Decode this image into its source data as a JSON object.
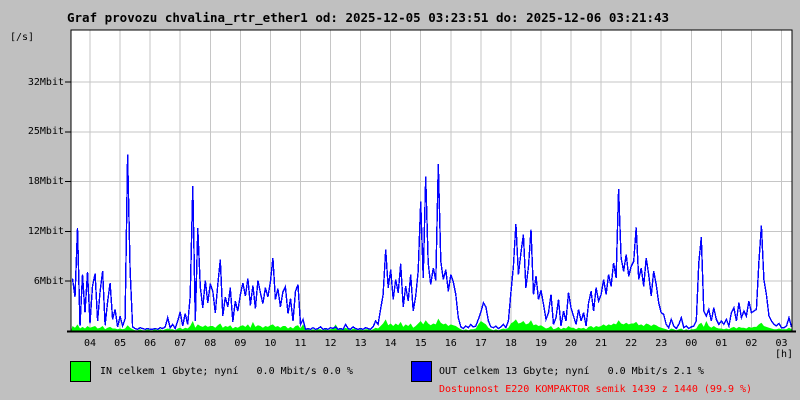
{
  "title": "Graf provozu chvalina_rtr_ether1 od: 2025-12-05 03:23:51 do: 2025-12-06 03:21:43",
  "y_axis": {
    "unit_label": "[/s]",
    "tick_values": [
      6,
      12,
      18,
      25,
      32
    ],
    "tick_labels": [
      "6Mbit",
      "12Mbit",
      "18Mbit",
      "25Mbit",
      "32Mbit"
    ]
  },
  "x_axis": {
    "unit_label": "[h]",
    "hour_labels": [
      "04",
      "05",
      "06",
      "07",
      "08",
      "09",
      "10",
      "11",
      "12",
      "13",
      "14",
      "15",
      "16",
      "17",
      "18",
      "19",
      "20",
      "21",
      "22",
      "23",
      "00",
      "01",
      "02",
      "03"
    ],
    "first_hour_offset_minutes": 38,
    "total_minutes": 1439
  },
  "legend": {
    "in": {
      "color": "#00ff00",
      "label": "IN celkem 1 Gbyte; nyní   0.0 Mbit/s 0.0 %"
    },
    "out": {
      "color": "#0000ff",
      "label": "OUT celkem 13 Gbyte; nyní   0.0 Mbit/s 2.1 %"
    },
    "availability": {
      "color": "#ff0000",
      "label": "Dostupnost E220 KOMPAKTOR semik 1439 z 1440 (99.9 %)"
    }
  },
  "colors": {
    "background": "#c0c0c0",
    "plot_background": "#ffffff",
    "grid": "#c6c6c6",
    "border": "#000000",
    "in_series": "#00ff00",
    "out_series": "#0000ff"
  },
  "chart_data": {
    "type": "line",
    "title": "Graf provozu chvalina_rtr_ether1",
    "time_start": "2025-12-05 03:23:51",
    "time_end": "2025-12-06 03:21:43",
    "interval_minutes": 5,
    "units": "Mbit/s",
    "ylabel": "[/s]",
    "xlabel": "[h]",
    "ylim": [
      0,
      38
    ],
    "grid": true,
    "legend_position": "bottom",
    "y_tick_values": [
      6,
      12,
      18,
      25,
      32
    ],
    "series": [
      {
        "name": "IN",
        "style": "area",
        "color": "#00ff00",
        "values": [
          0.6,
          0.4,
          0.8,
          0.3,
          0.5,
          0.3,
          0.6,
          0.4,
          0.5,
          0.6,
          0.3,
          0.4,
          0.6,
          0.2,
          0.4,
          0.5,
          0.3,
          0.3,
          0.2,
          0.3,
          0.2,
          0.3,
          0.7,
          0.4,
          0.2,
          0.1,
          0.1,
          0.2,
          0.1,
          0.1,
          0.2,
          0.1,
          0.1,
          0.2,
          0.1,
          0.2,
          0.1,
          0.2,
          0.3,
          0.2,
          0.2,
          0.1,
          0.3,
          0.4,
          0.2,
          0.4,
          0.3,
          0.6,
          1.2,
          0.4,
          0.8,
          0.6,
          0.5,
          0.7,
          0.5,
          0.6,
          0.6,
          0.4,
          0.7,
          0.9,
          0.4,
          0.6,
          0.5,
          0.7,
          0.3,
          0.5,
          0.4,
          0.6,
          0.7,
          0.5,
          0.8,
          0.4,
          1.1,
          0.5,
          0.7,
          0.6,
          0.4,
          0.6,
          0.5,
          0.7,
          0.8,
          0.5,
          0.6,
          0.4,
          0.6,
          0.6,
          0.3,
          0.5,
          0.3,
          0.6,
          0.7,
          0.3,
          0.8,
          0.2,
          0.2,
          0.1,
          0.2,
          0.1,
          0.2,
          0.2,
          0.1,
          0.2,
          0.1,
          0.2,
          0.3,
          0.8,
          0.3,
          0.2,
          0.2,
          0.4,
          0.2,
          0.1,
          0.3,
          0.2,
          0.1,
          0.2,
          0.1,
          0.2,
          0.2,
          0.1,
          0.2,
          0.4,
          0.3,
          0.6,
          0.9,
          1.4,
          0.7,
          0.9,
          0.6,
          0.9,
          0.7,
          1.1,
          0.5,
          0.8,
          0.6,
          0.9,
          0.4,
          0.6,
          0.9,
          1.2,
          0.8,
          1.3,
          0.9,
          0.7,
          0.9,
          0.8,
          1.5,
          1.0,
          0.8,
          0.9,
          0.6,
          0.8,
          0.7,
          0.6,
          0.4,
          0.2,
          0.1,
          0.2,
          0.1,
          0.2,
          0.2,
          0.3,
          0.8,
          1.2,
          1.0,
          0.8,
          0.4,
          0.2,
          0.1,
          0.2,
          0.1,
          0.2,
          0.3,
          0.2,
          0.4,
          0.9,
          1.1,
          1.4,
          0.9,
          1.0,
          1.2,
          0.8,
          0.9,
          1.3,
          0.7,
          0.8,
          0.6,
          0.7,
          0.5,
          0.3,
          0.4,
          0.6,
          0.2,
          0.3,
          0.5,
          0.2,
          0.4,
          0.3,
          0.6,
          0.4,
          0.4,
          0.2,
          0.4,
          0.3,
          0.4,
          0.2,
          0.5,
          0.6,
          0.4,
          0.6,
          0.5,
          0.6,
          0.8,
          0.6,
          0.8,
          0.7,
          0.9,
          0.8,
          1.3,
          0.9,
          0.8,
          1.0,
          0.8,
          0.9,
          0.9,
          1.1,
          0.7,
          0.8,
          0.6,
          0.9,
          0.8,
          0.6,
          0.8,
          0.7,
          0.5,
          0.4,
          0.3,
          0.2,
          0.1,
          0.3,
          0.2,
          0.1,
          0.2,
          0.3,
          0.1,
          0.2,
          0.1,
          0.2,
          0.2,
          0.3,
          0.8,
          1.0,
          0.5,
          1.2,
          0.6,
          0.4,
          0.6,
          0.4,
          0.3,
          0.3,
          0.2,
          0.3,
          0.2,
          0.4,
          0.5,
          0.3,
          0.5,
          0.4,
          0.4,
          0.3,
          0.5,
          0.4,
          0.5,
          0.5,
          0.8,
          1.0,
          0.6,
          0.5,
          0.4,
          0.3,
          0.2,
          0.2,
          0.3,
          0.2,
          0.2,
          0.2,
          0.4,
          0.2
        ]
      },
      {
        "name": "OUT",
        "style": "line",
        "color": "#0000ff",
        "values": [
          6.3,
          4.1,
          12.4,
          0.6,
          6.8,
          2.2,
          7.1,
          0.9,
          5.4,
          6.9,
          1.2,
          4.8,
          7.2,
          0.7,
          3.5,
          5.8,
          1.4,
          2.6,
          0.5,
          1.8,
          0.6,
          1.5,
          21.8,
          7.4,
          0.5,
          0.3,
          0.2,
          0.4,
          0.3,
          0.2,
          0.3,
          0.2,
          0.2,
          0.3,
          0.2,
          0.4,
          0.3,
          0.5,
          1.6,
          0.4,
          0.8,
          0.3,
          1.2,
          2.3,
          0.6,
          2.1,
          0.8,
          4.2,
          17.5,
          1.2,
          12.4,
          5.3,
          2.8,
          6.1,
          3.4,
          5.7,
          4.8,
          2.2,
          5.6,
          8.6,
          1.8,
          4.1,
          2.9,
          5.2,
          1.1,
          3.6,
          2.4,
          4.4,
          5.8,
          4.2,
          6.3,
          3.1,
          5.5,
          2.7,
          6.1,
          4.6,
          3.3,
          5.2,
          4.1,
          5.9,
          8.8,
          3.8,
          5.1,
          2.9,
          4.7,
          5.3,
          2.1,
          3.9,
          1.2,
          4.8,
          5.6,
          0.8,
          1.4,
          0.2,
          0.3,
          0.2,
          0.4,
          0.2,
          0.3,
          0.5,
          0.2,
          0.3,
          0.2,
          0.4,
          0.3,
          0.5,
          0.2,
          0.3,
          0.2,
          0.8,
          0.3,
          0.2,
          0.5,
          0.3,
          0.2,
          0.3,
          0.2,
          0.4,
          0.3,
          0.2,
          0.5,
          1.2,
          0.8,
          2.6,
          4.4,
          9.8,
          5.2,
          7.4,
          3.8,
          6.2,
          4.6,
          8.1,
          2.9,
          5.4,
          3.6,
          6.8,
          2.4,
          4.2,
          7.2,
          15.6,
          6.4,
          18.7,
          8.2,
          5.6,
          7.6,
          6.1,
          20.5,
          8.4,
          6.2,
          7.4,
          4.8,
          6.8,
          5.9,
          4.4,
          1.6,
          0.5,
          0.3,
          0.6,
          0.4,
          0.8,
          0.5,
          0.6,
          1.4,
          2.3,
          3.4,
          2.9,
          1.2,
          0.5,
          0.4,
          0.6,
          0.3,
          0.5,
          0.8,
          0.4,
          1.2,
          4.6,
          7.8,
          12.9,
          6.8,
          9.4,
          11.6,
          5.2,
          7.8,
          12.2,
          4.4,
          6.6,
          3.8,
          4.9,
          3.2,
          1.4,
          2.2,
          4.4,
          0.8,
          1.6,
          3.8,
          0.6,
          2.4,
          1.2,
          4.6,
          2.8,
          1.8,
          0.8,
          2.6,
          1.2,
          2.2,
          0.6,
          3.4,
          4.8,
          2.4,
          5.2,
          3.6,
          4.4,
          6.2,
          4.4,
          6.8,
          5.4,
          8.2,
          6.4,
          17.1,
          8.8,
          7.2,
          9.2,
          6.6,
          7.8,
          8.4,
          12.5,
          6.2,
          7.6,
          5.4,
          8.8,
          6.8,
          4.2,
          7.2,
          5.6,
          3.4,
          2.2,
          2.0,
          0.8,
          0.4,
          1.4,
          0.6,
          0.3,
          0.8,
          1.6,
          0.4,
          0.6,
          0.3,
          0.5,
          0.6,
          1.2,
          8.2,
          11.3,
          2.4,
          1.8,
          2.6,
          1.2,
          2.8,
          1.4,
          0.8,
          1.2,
          0.8,
          1.4,
          0.6,
          2.2,
          2.8,
          1.2,
          3.4,
          1.6,
          2.4,
          1.8,
          3.6,
          2.2,
          2.4,
          2.6,
          8.3,
          12.7,
          6.2,
          4.4,
          1.8,
          1.2,
          0.8,
          0.6,
          0.9,
          0.4,
          0.4,
          0.6,
          1.6,
          0.5
        ]
      }
    ]
  }
}
